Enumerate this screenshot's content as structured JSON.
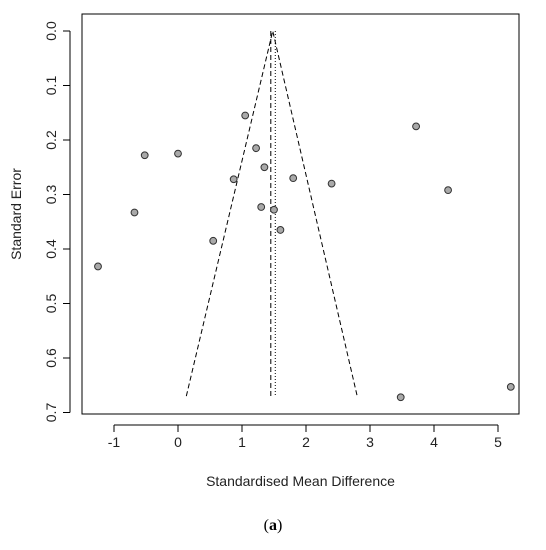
{
  "chart_data": {
    "type": "scatter",
    "title": "",
    "xlabel": "Standardised Mean Difference",
    "ylabel": "Standard Error",
    "xlim": [
      -1.5,
      5.5
    ],
    "ylim": [
      0.0,
      0.7
    ],
    "y_reversed": true,
    "x_ticks": [
      -1,
      0,
      1,
      2,
      3,
      4,
      5
    ],
    "x_tick_labels": [
      "-1",
      "0",
      "1",
      "2",
      "3",
      "4",
      "5"
    ],
    "y_ticks": [
      0.0,
      0.1,
      0.2,
      0.3,
      0.4,
      0.5,
      0.6,
      0.7
    ],
    "y_tick_labels": [
      "0.0",
      "0.1",
      "0.2",
      "0.3",
      "0.4",
      "0.5",
      "0.6",
      "0.7"
    ],
    "pooled_effects": [
      1.45,
      1.52
    ],
    "funnel": {
      "apex": [
        1.48,
        0.0
      ],
      "base_y": 0.67,
      "base_left_x": 0.13,
      "base_right_x": 2.8
    },
    "points": [
      {
        "x": 1.05,
        "y": 0.155
      },
      {
        "x": 3.72,
        "y": 0.175
      },
      {
        "x": 1.22,
        "y": 0.215
      },
      {
        "x": 0.0,
        "y": 0.225
      },
      {
        "x": -0.52,
        "y": 0.228
      },
      {
        "x": 1.35,
        "y": 0.25
      },
      {
        "x": 0.87,
        "y": 0.272
      },
      {
        "x": 1.8,
        "y": 0.27
      },
      {
        "x": 2.4,
        "y": 0.28
      },
      {
        "x": 4.22,
        "y": 0.292
      },
      {
        "x": 1.3,
        "y": 0.323
      },
      {
        "x": 1.5,
        "y": 0.328
      },
      {
        "x": -0.68,
        "y": 0.333
      },
      {
        "x": 1.6,
        "y": 0.365
      },
      {
        "x": 0.55,
        "y": 0.385
      },
      {
        "x": -1.25,
        "y": 0.432
      },
      {
        "x": 5.2,
        "y": 0.653
      },
      {
        "x": 3.48,
        "y": 0.672
      }
    ],
    "grid": false,
    "legend": "none"
  },
  "caption": {
    "open": "(",
    "label": "a",
    "close": ")"
  },
  "colors": {
    "point_fill": "#a9a9a9",
    "point_stroke": "#333333",
    "lines": "#000000"
  }
}
